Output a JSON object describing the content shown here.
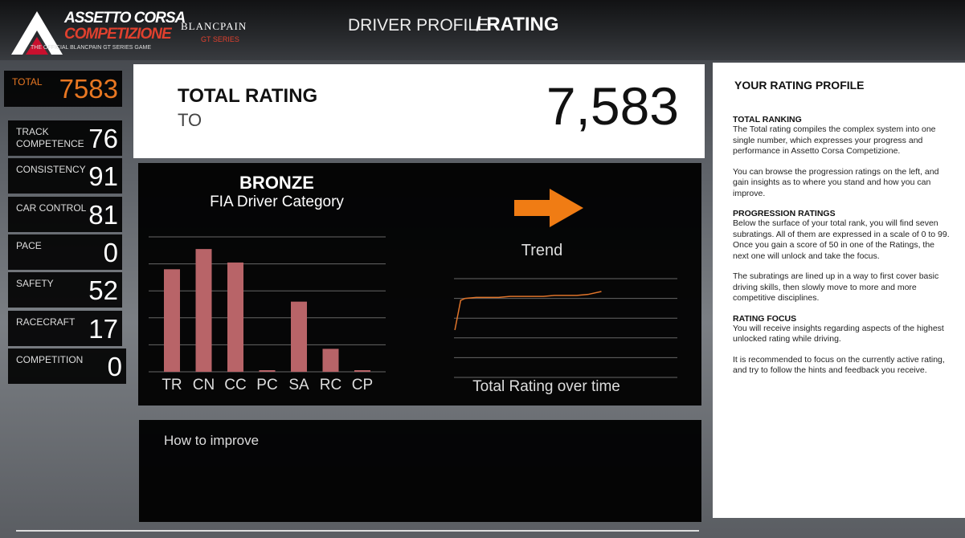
{
  "header": {
    "logo_line1": "ASSETTO CORSA",
    "logo_line2": "COMPETIZIONE",
    "logo_tagline": "THE OFFICIAL BLANCPAIN GT SERIES GAME",
    "partner_name": "BLANCPAIN",
    "partner_series": "GT SERIES",
    "breadcrumb": "DRIVER PROFILE",
    "page_title": "/ RATING"
  },
  "total": {
    "label": "TOTAL",
    "value": 7583
  },
  "ratings": [
    {
      "label": "TRACK\nCOMPETENCE",
      "short": "TR",
      "value": 76
    },
    {
      "label": "CONSISTENCY",
      "short": "CN",
      "value": 91
    },
    {
      "label": "CAR CONTROL",
      "short": "CC",
      "value": 81
    },
    {
      "label": "PACE",
      "short": "PC",
      "value": 0
    },
    {
      "label": "SAFETY",
      "short": "SA",
      "value": 52
    },
    {
      "label": "RACECRAFT",
      "short": "RC",
      "value": 17
    },
    {
      "label": "COMPETITION",
      "short": "CP",
      "value": 0
    }
  ],
  "total_card": {
    "title": "TOTAL RATING",
    "abbr": "TO",
    "value_label": "7,583"
  },
  "category": {
    "name": "BRONZE",
    "subtitle": "FIA Driver Category"
  },
  "bar_chart": {
    "type": "bar",
    "ylim": [
      0,
      100
    ],
    "yticks": [
      0,
      20,
      40,
      60,
      80,
      100
    ],
    "color": "#b86468",
    "grid": true
  },
  "trend": {
    "title": "Trend",
    "chart": {
      "type": "line",
      "title": "Total Rating over time",
      "x": [
        0.4,
        3,
        5,
        10,
        20,
        25,
        35,
        40,
        45,
        55,
        60,
        66
      ],
      "values": [
        2.4,
        3.9,
        4.0,
        4.05,
        4.05,
        4.1,
        4.1,
        4.1,
        4.15,
        4.15,
        4.2,
        4.35
      ],
      "xlim": [
        0,
        100
      ],
      "ylim": [
        0,
        5
      ],
      "yticks": [
        0,
        1,
        2,
        3,
        4,
        5
      ],
      "color": "#e0742a",
      "grid": true
    }
  },
  "improve": {
    "title": "How to improve"
  },
  "profile": {
    "title": "YOUR RATING PROFILE",
    "sections": [
      {
        "heading": "TOTAL RANKING",
        "paragraphs": [
          "The Total rating compiles the complex system into one single number, which expresses your progress and performance in Assetto Corsa Competizione.",
          "You can browse the progression ratings on the left, and gain insights as to where you stand and how you can improve."
        ]
      },
      {
        "heading": "PROGRESSION RATINGS",
        "paragraphs": [
          "Below the surface of your total rank, you will find seven subratings. All of them are expressed in a scale of 0 to 99. Once you gain a score of 50 in one of the Ratings, the next one will unlock and take the focus.",
          "The subratings are lined up in a way to first cover basic driving skills, then slowly move to more and more competitive disciplines."
        ]
      },
      {
        "heading": "RATING FOCUS",
        "paragraphs": [
          "You will receive insights regarding aspects of the highest unlocked rating while driving.",
          "It is recommended to focus on the currently active rating, and try to follow the hints and feedback you receive."
        ]
      }
    ]
  }
}
